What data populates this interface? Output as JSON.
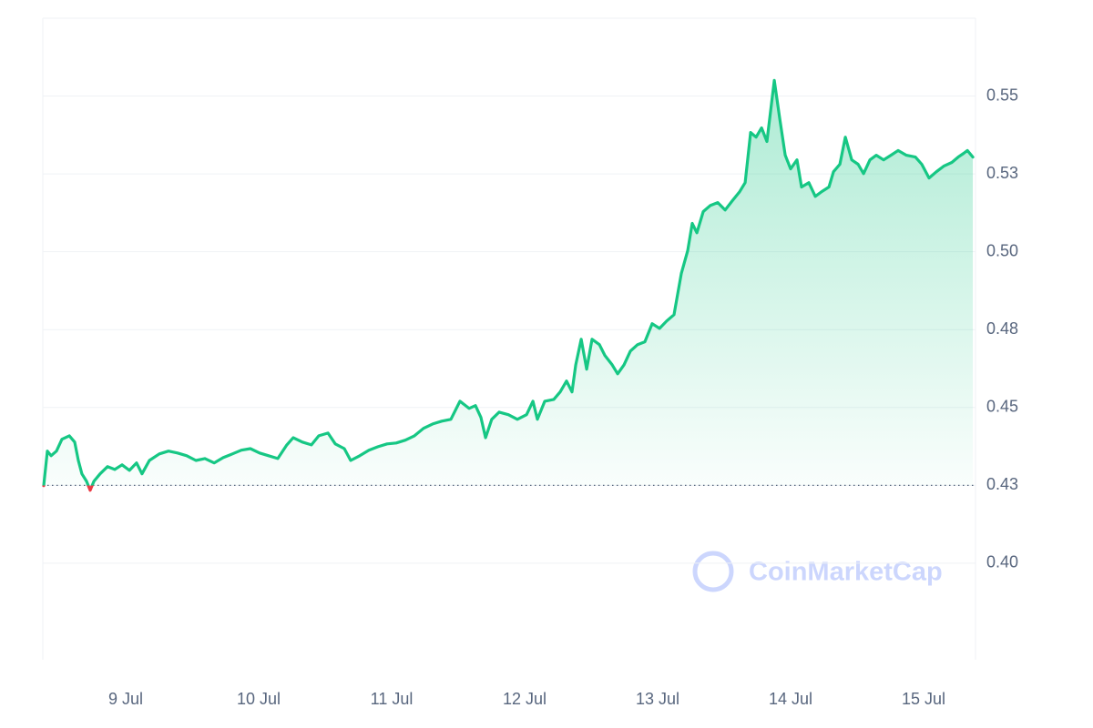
{
  "chart_data": {
    "type": "line",
    "watermark": "CoinMarketCap",
    "x": [
      8.384,
      8.411,
      8.439,
      8.48,
      8.521,
      8.576,
      8.617,
      8.644,
      8.671,
      8.706,
      8.733,
      8.761,
      8.808,
      8.863,
      8.918,
      8.973,
      9.028,
      9.082,
      9.123,
      9.178,
      9.253,
      9.322,
      9.39,
      9.459,
      9.528,
      9.596,
      9.665,
      9.733,
      9.802,
      9.87,
      9.938,
      10.007,
      10.075,
      10.144,
      10.212,
      10.26,
      10.329,
      10.397,
      10.452,
      10.521,
      10.576,
      10.644,
      10.692,
      10.76,
      10.829,
      10.897,
      10.966,
      11.034,
      11.103,
      11.171,
      11.24,
      11.308,
      11.377,
      11.445,
      11.514,
      11.582,
      11.63,
      11.671,
      11.706,
      11.753,
      11.808,
      11.877,
      11.945,
      12.014,
      12.062,
      12.096,
      12.151,
      12.219,
      12.267,
      12.315,
      12.356,
      12.384,
      12.425,
      12.466,
      12.507,
      12.562,
      12.603,
      12.658,
      12.699,
      12.747,
      12.795,
      12.849,
      12.904,
      12.959,
      13.014,
      13.068,
      13.123,
      13.178,
      13.226,
      13.26,
      13.295,
      13.343,
      13.397,
      13.452,
      13.507,
      13.562,
      13.617,
      13.658,
      13.699,
      13.74,
      13.781,
      13.822,
      13.877,
      13.918,
      13.959,
      14.0,
      14.048,
      14.082,
      14.137,
      14.185,
      14.233,
      14.288,
      14.322,
      14.37,
      14.411,
      14.459,
      14.507,
      14.548,
      14.596,
      14.644,
      14.699,
      14.754,
      14.808,
      14.87,
      14.938,
      14.986,
      15.041,
      15.096,
      15.151,
      15.212,
      15.26,
      15.301,
      15.329,
      15.37
    ],
    "series": [
      {
        "color": "#16c784",
        "below_color": "#ea3943",
        "values": [
          0.4249,
          0.436,
          0.4345,
          0.436,
          0.4398,
          0.4409,
          0.4389,
          0.433,
          0.4287,
          0.4263,
          0.4234,
          0.4263,
          0.4287,
          0.431,
          0.4301,
          0.4316,
          0.4298,
          0.4322,
          0.4287,
          0.433,
          0.4351,
          0.436,
          0.4354,
          0.4345,
          0.433,
          0.4336,
          0.4322,
          0.4339,
          0.4351,
          0.4363,
          0.4368,
          0.4354,
          0.4345,
          0.4336,
          0.438,
          0.4403,
          0.4389,
          0.438,
          0.4409,
          0.4418,
          0.4383,
          0.4368,
          0.433,
          0.4345,
          0.4363,
          0.4374,
          0.4383,
          0.4386,
          0.4395,
          0.4409,
          0.4433,
          0.4447,
          0.4456,
          0.4462,
          0.452,
          0.4497,
          0.4506,
          0.4468,
          0.4403,
          0.4462,
          0.4485,
          0.4477,
          0.4462,
          0.4477,
          0.452,
          0.4462,
          0.452,
          0.4526,
          0.455,
          0.4585,
          0.455,
          0.4637,
          0.4719,
          0.4623,
          0.4719,
          0.4702,
          0.4667,
          0.4637,
          0.4608,
          0.4637,
          0.4681,
          0.4702,
          0.4711,
          0.4769,
          0.4754,
          0.4778,
          0.4798,
          0.493,
          0.5003,
          0.5091,
          0.5061,
          0.5129,
          0.5149,
          0.5158,
          0.5134,
          0.5164,
          0.5193,
          0.5222,
          0.5383,
          0.5368,
          0.5398,
          0.5354,
          0.555,
          0.5427,
          0.531,
          0.5266,
          0.5295,
          0.5208,
          0.5222,
          0.5178,
          0.5193,
          0.5208,
          0.5257,
          0.5281,
          0.5368,
          0.5295,
          0.5281,
          0.5251,
          0.5295,
          0.531,
          0.5295,
          0.531,
          0.5325,
          0.531,
          0.5304,
          0.5281,
          0.5237,
          0.5257,
          0.5275,
          0.5287,
          0.5304,
          0.5316,
          0.5325,
          0.5304
        ]
      }
    ],
    "baseline": 0.425,
    "xlim": [
      8.377,
      15.39
    ],
    "xticks": [
      {
        "value": 9,
        "label": "9 Jul"
      },
      {
        "value": 10,
        "label": "10 Jul"
      },
      {
        "value": 11,
        "label": "11 Jul"
      },
      {
        "value": 12,
        "label": "12 Jul"
      },
      {
        "value": 13,
        "label": "13 Jul"
      },
      {
        "value": 14,
        "label": "14 Jul"
      },
      {
        "value": 15,
        "label": "15 Jul"
      }
    ],
    "ylim": [
      0.369,
      0.575
    ],
    "yticks": [
      {
        "value": 0.4,
        "label": "0.40"
      },
      {
        "value": 0.425,
        "label": "0.43"
      },
      {
        "value": 0.45,
        "label": "0.45"
      },
      {
        "value": 0.475,
        "label": "0.48"
      },
      {
        "value": 0.5,
        "label": "0.50"
      },
      {
        "value": 0.525,
        "label": "0.53"
      },
      {
        "value": 0.55,
        "label": "0.55"
      }
    ],
    "grid": true
  }
}
